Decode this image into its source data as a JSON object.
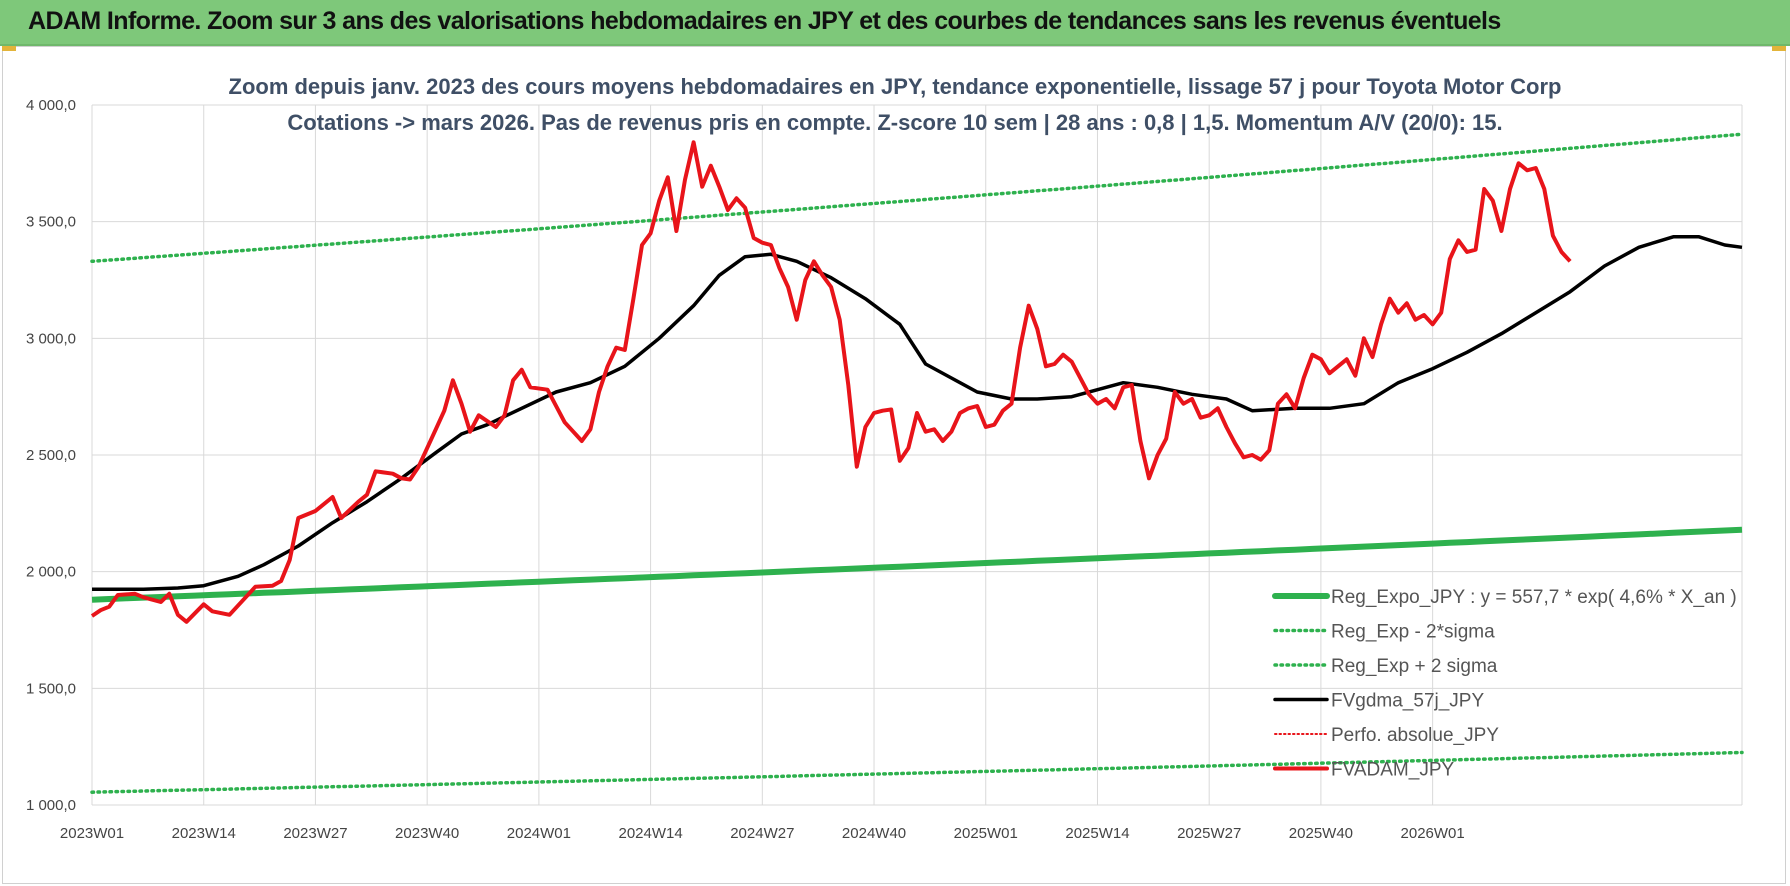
{
  "header": {
    "title": "ADAM Informe. Zoom sur 3 ans des valorisations hebdomadaires en JPY et des courbes de tendances sans les revenus éventuels"
  },
  "colors": {
    "banner": "#7ec87a",
    "trend": "#2eb14e",
    "sigma": "#2eb14e",
    "gdma": "#000000",
    "fvadam": "#e8141a",
    "perfo": "#e8141a",
    "grid": "#d9d9d9"
  },
  "chart_data": {
    "type": "line",
    "title": "Zoom depuis janv. 2023 des cours moyens hebdomadaires en JPY, tendance exponentielle, lissage 57 j pour Toyota Motor Corp",
    "subtitle": "Cotations -> mars 2026. Pas de revenus pris en compte. Z-score 10 sem | 28 ans : 0,8 | 1,5. Momentum A/V (20/0): 15.",
    "xlabel": "",
    "ylabel": "",
    "ylim": [
      1000,
      4000
    ],
    "yticks": [
      1000,
      1500,
      2000,
      2500,
      3000,
      3500,
      4000
    ],
    "ytick_labels": [
      "1 000,0",
      "1 500,0",
      "2 000,0",
      "2 500,0",
      "3 000,0",
      "3 500,0",
      "4 000,0"
    ],
    "xticks": [
      "2023W01",
      "2023W14",
      "2023W27",
      "2023W40",
      "2024W01",
      "2024W14",
      "2024W27",
      "2024W40",
      "2025W01",
      "2025W14",
      "2025W27",
      "2025W40",
      "2026W01"
    ],
    "grid": true,
    "legend_position": "bottom-right",
    "series": [
      {
        "name": "Reg_Expo_JPY : y = 557,7 * exp( 4,6% *  X_an )",
        "style": "thick",
        "start": 1880,
        "end": 2180
      },
      {
        "name": "Reg_Exp - 2*sigma",
        "style": "dotted",
        "start": 1055,
        "end": 1225
      },
      {
        "name": "Reg_Exp + 2 sigma",
        "style": "dotted",
        "start": 3330,
        "end": 3875
      },
      {
        "name": "FVgdma_57j_JPY",
        "style": "solid",
        "values": [
          [
            0,
            1925
          ],
          [
            6,
            1925
          ],
          [
            10,
            1930
          ],
          [
            13,
            1940
          ],
          [
            17,
            1980
          ],
          [
            20,
            2030
          ],
          [
            24,
            2110
          ],
          [
            28,
            2210
          ],
          [
            32,
            2300
          ],
          [
            36,
            2400
          ],
          [
            40,
            2510
          ],
          [
            43,
            2590
          ],
          [
            46,
            2630
          ],
          [
            50,
            2700
          ],
          [
            54,
            2770
          ],
          [
            58,
            2810
          ],
          [
            62,
            2880
          ],
          [
            66,
            3000
          ],
          [
            70,
            3140
          ],
          [
            73,
            3270
          ],
          [
            76,
            3350
          ],
          [
            79,
            3360
          ],
          [
            82,
            3330
          ],
          [
            86,
            3260
          ],
          [
            90,
            3170
          ],
          [
            94,
            3060
          ],
          [
            97,
            2890
          ],
          [
            100,
            2830
          ],
          [
            103,
            2770
          ],
          [
            107,
            2740
          ],
          [
            110,
            2740
          ],
          [
            114,
            2750
          ],
          [
            117,
            2780
          ],
          [
            120,
            2810
          ],
          [
            124,
            2790
          ],
          [
            128,
            2760
          ],
          [
            132,
            2740
          ],
          [
            135,
            2690
          ],
          [
            140,
            2700
          ],
          [
            144,
            2700
          ],
          [
            148,
            2720
          ],
          [
            152,
            2810
          ],
          [
            156,
            2870
          ],
          [
            160,
            2940
          ],
          [
            164,
            3020
          ],
          [
            168,
            3110
          ],
          [
            172,
            3200
          ],
          [
            176,
            3310
          ],
          [
            180,
            3390
          ],
          [
            184,
            3435
          ],
          [
            187,
            3435
          ],
          [
            190,
            3400
          ],
          [
            192,
            3390
          ]
        ]
      },
      {
        "name": "Perfo. absolue_JPY",
        "style": "dotted-red",
        "values": []
      },
      {
        "name": "FVADAM_JPY",
        "style": "solid",
        "values": [
          [
            0,
            1810
          ],
          [
            1,
            1835
          ],
          [
            2,
            1850
          ],
          [
            3,
            1900
          ],
          [
            5,
            1905
          ],
          [
            6,
            1890
          ],
          [
            8,
            1870
          ],
          [
            9,
            1905
          ],
          [
            10,
            1815
          ],
          [
            11,
            1785
          ],
          [
            13,
            1860
          ],
          [
            14,
            1830
          ],
          [
            16,
            1815
          ],
          [
            18,
            1895
          ],
          [
            19,
            1935
          ],
          [
            21,
            1940
          ],
          [
            22,
            1960
          ],
          [
            23,
            2050
          ],
          [
            24,
            2230
          ],
          [
            26,
            2260
          ],
          [
            28,
            2320
          ],
          [
            29,
            2230
          ],
          [
            31,
            2300
          ],
          [
            32,
            2330
          ],
          [
            33,
            2430
          ],
          [
            35,
            2420
          ],
          [
            36,
            2400
          ],
          [
            37,
            2395
          ],
          [
            38,
            2450
          ],
          [
            40,
            2610
          ],
          [
            41,
            2690
          ],
          [
            42,
            2820
          ],
          [
            43,
            2720
          ],
          [
            44,
            2600
          ],
          [
            45,
            2670
          ],
          [
            47,
            2620
          ],
          [
            48,
            2670
          ],
          [
            49,
            2820
          ],
          [
            50,
            2865
          ],
          [
            51,
            2790
          ],
          [
            53,
            2780
          ],
          [
            54,
            2710
          ],
          [
            55,
            2640
          ],
          [
            56,
            2600
          ],
          [
            57,
            2560
          ],
          [
            58,
            2610
          ],
          [
            59,
            2770
          ],
          [
            60,
            2880
          ],
          [
            61,
            2960
          ],
          [
            62,
            2950
          ],
          [
            63,
            3170
          ],
          [
            64,
            3400
          ],
          [
            65,
            3450
          ],
          [
            66,
            3590
          ],
          [
            67,
            3690
          ],
          [
            68,
            3460
          ],
          [
            69,
            3680
          ],
          [
            70,
            3840
          ],
          [
            71,
            3650
          ],
          [
            72,
            3740
          ],
          [
            73,
            3650
          ],
          [
            74,
            3550
          ],
          [
            75,
            3600
          ],
          [
            76,
            3560
          ],
          [
            77,
            3430
          ],
          [
            78,
            3410
          ],
          [
            79,
            3400
          ],
          [
            80,
            3300
          ],
          [
            81,
            3220
          ],
          [
            82,
            3080
          ],
          [
            83,
            3250
          ],
          [
            84,
            3330
          ],
          [
            85,
            3270
          ],
          [
            86,
            3220
          ],
          [
            87,
            3080
          ],
          [
            88,
            2800
          ],
          [
            89,
            2450
          ],
          [
            90,
            2620
          ],
          [
            91,
            2680
          ],
          [
            92,
            2690
          ],
          [
            93,
            2695
          ],
          [
            94,
            2475
          ],
          [
            95,
            2530
          ],
          [
            96,
            2680
          ],
          [
            97,
            2600
          ],
          [
            98,
            2610
          ],
          [
            99,
            2560
          ],
          [
            100,
            2600
          ],
          [
            101,
            2680
          ],
          [
            102,
            2700
          ],
          [
            103,
            2710
          ],
          [
            104,
            2620
          ],
          [
            105,
            2630
          ],
          [
            106,
            2690
          ],
          [
            107,
            2720
          ],
          [
            108,
            2960
          ],
          [
            109,
            3140
          ],
          [
            110,
            3040
          ],
          [
            111,
            2880
          ],
          [
            112,
            2890
          ],
          [
            113,
            2930
          ],
          [
            114,
            2900
          ],
          [
            115,
            2830
          ],
          [
            116,
            2760
          ],
          [
            117,
            2720
          ],
          [
            118,
            2740
          ],
          [
            119,
            2700
          ],
          [
            120,
            2790
          ],
          [
            121,
            2800
          ],
          [
            122,
            2560
          ],
          [
            123,
            2400
          ],
          [
            124,
            2500
          ],
          [
            125,
            2570
          ],
          [
            126,
            2770
          ],
          [
            127,
            2720
          ],
          [
            128,
            2740
          ],
          [
            129,
            2660
          ],
          [
            130,
            2670
          ],
          [
            131,
            2700
          ],
          [
            132,
            2620
          ],
          [
            133,
            2550
          ],
          [
            134,
            2490
          ],
          [
            135,
            2500
          ],
          [
            136,
            2480
          ],
          [
            137,
            2520
          ],
          [
            138,
            2720
          ],
          [
            139,
            2760
          ],
          [
            140,
            2700
          ],
          [
            141,
            2830
          ],
          [
            142,
            2930
          ],
          [
            143,
            2910
          ],
          [
            144,
            2850
          ],
          [
            145,
            2880
          ],
          [
            146,
            2910
          ],
          [
            147,
            2840
          ],
          [
            148,
            3000
          ],
          [
            149,
            2920
          ],
          [
            150,
            3060
          ],
          [
            151,
            3170
          ],
          [
            152,
            3110
          ],
          [
            153,
            3150
          ],
          [
            154,
            3080
          ],
          [
            155,
            3100
          ],
          [
            156,
            3060
          ],
          [
            157,
            3110
          ],
          [
            158,
            3340
          ],
          [
            159,
            3420
          ],
          [
            160,
            3370
          ],
          [
            161,
            3380
          ],
          [
            162,
            3640
          ],
          [
            163,
            3590
          ],
          [
            164,
            3460
          ],
          [
            165,
            3640
          ],
          [
            166,
            3750
          ],
          [
            167,
            3720
          ],
          [
            168,
            3730
          ],
          [
            169,
            3640
          ],
          [
            170,
            3440
          ],
          [
            171,
            3370
          ],
          [
            172,
            3330
          ]
        ]
      }
    ]
  }
}
